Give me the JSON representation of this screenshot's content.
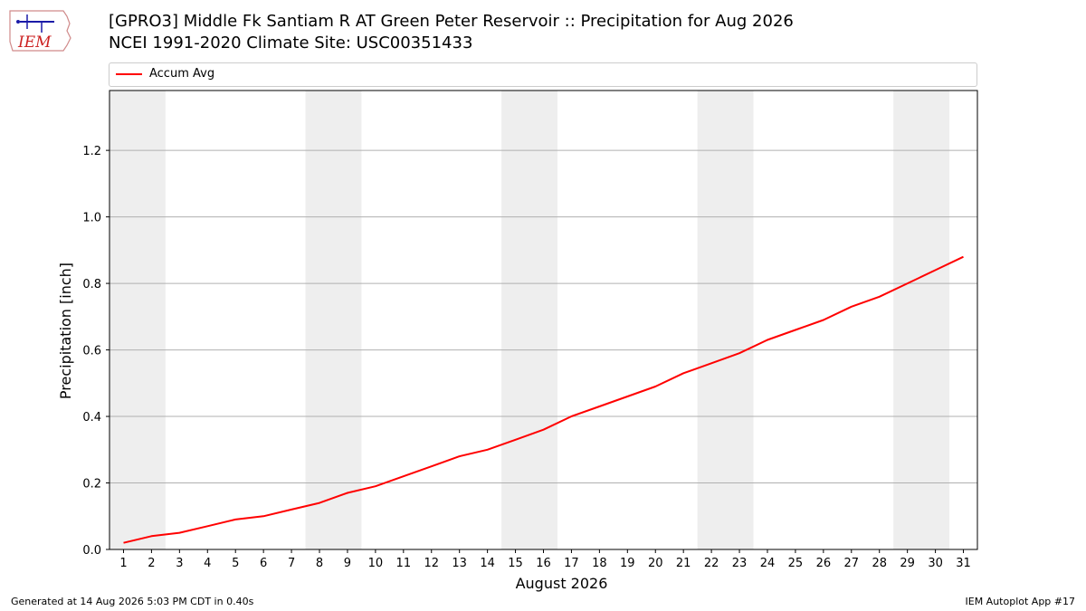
{
  "header": {
    "title_line1": "[GPRO3] Middle Fk Santiam R  AT Green Peter Reservoir :: Precipitation for Aug 2026",
    "title_line2": "NCEI 1991-2020 Climate Site: USC00351433"
  },
  "logo": {
    "text": "IEM"
  },
  "footer": {
    "left": "Generated at 14 Aug 2026 5:03 PM CDT in 0.40s",
    "right": "IEM Autoplot App #17"
  },
  "chart_data": {
    "type": "line",
    "xlabel": "August 2026",
    "ylabel": "Precipitation [inch]",
    "xlim": [
      0.5,
      31.5
    ],
    "ylim": [
      0.0,
      1.38
    ],
    "yticks": [
      0.0,
      0.2,
      0.4,
      0.6,
      0.8,
      1.0,
      1.2
    ],
    "ytick_labels": [
      "0.0",
      "0.2",
      "0.4",
      "0.6",
      "0.8",
      "1.0",
      "1.2"
    ],
    "xticks": [
      1,
      2,
      3,
      4,
      5,
      6,
      7,
      8,
      9,
      10,
      11,
      12,
      13,
      14,
      15,
      16,
      17,
      18,
      19,
      20,
      21,
      22,
      23,
      24,
      25,
      26,
      27,
      28,
      29,
      30,
      31
    ],
    "grid": "horizontal",
    "legend_position": "top",
    "weekend_shading": [
      [
        1,
        2
      ],
      [
        8,
        9
      ],
      [
        15,
        16
      ],
      [
        22,
        23
      ],
      [
        29,
        30
      ]
    ],
    "colors": {
      "series": "#ff0000",
      "shade": "#eeeeee",
      "grid": "#b0b0b0"
    },
    "series": [
      {
        "name": "Accum Avg",
        "x": [
          1,
          2,
          3,
          4,
          5,
          6,
          7,
          8,
          9,
          10,
          11,
          12,
          13,
          14,
          15,
          16,
          17,
          18,
          19,
          20,
          21,
          22,
          23,
          24,
          25,
          26,
          27,
          28,
          29,
          30,
          31
        ],
        "values": [
          0.02,
          0.04,
          0.05,
          0.07,
          0.09,
          0.1,
          0.12,
          0.14,
          0.17,
          0.19,
          0.22,
          0.25,
          0.28,
          0.3,
          0.33,
          0.36,
          0.4,
          0.43,
          0.46,
          0.49,
          0.53,
          0.56,
          0.59,
          0.63,
          0.66,
          0.69,
          0.73,
          0.76,
          0.8,
          0.84,
          0.88
        ]
      }
    ]
  }
}
